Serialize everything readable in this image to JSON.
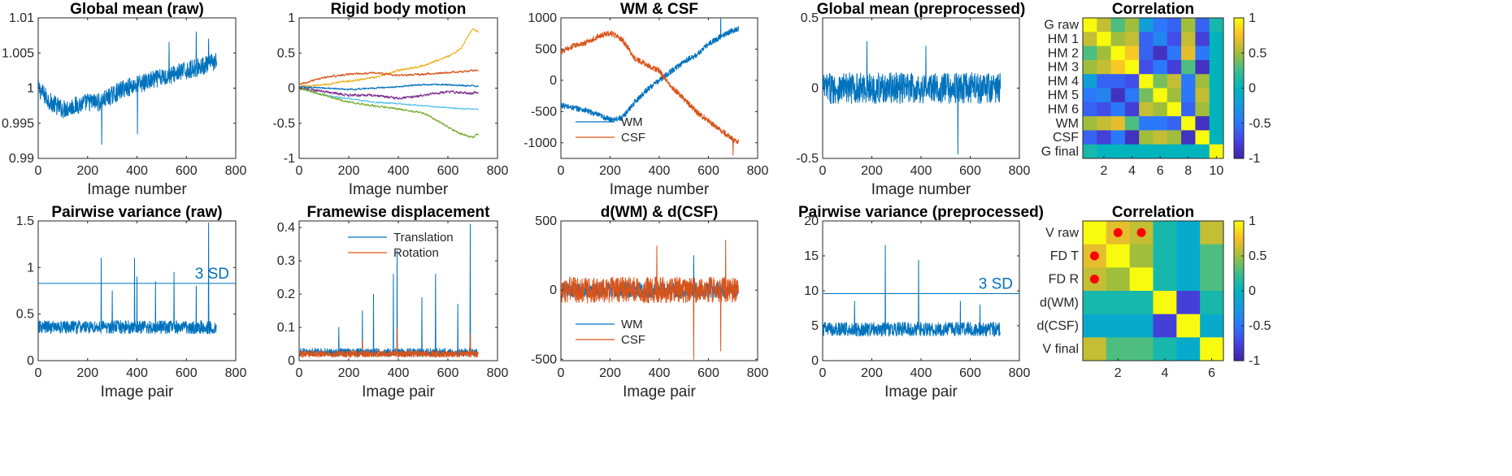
{
  "colors": {
    "blue": "#0072BD",
    "orange": "#D95319",
    "yellow": "#EDB120",
    "purple": "#7E2F8E",
    "green": "#77AC30",
    "cyan": "#4DBEEE",
    "marker": "#FF0000",
    "colormap": "parula"
  },
  "chart_data": [
    {
      "type": "line",
      "title": "Global mean (raw)",
      "xlabel": "Image number",
      "ylabel": "",
      "xlim": [
        0,
        800
      ],
      "ylim": [
        0.99,
        1.01
      ],
      "xticks": [
        "0",
        "200",
        "400",
        "600",
        "800"
      ],
      "yticks": [
        "0.99",
        "0.995",
        "1",
        "1.005",
        "1.01"
      ],
      "series": [
        {
          "color": "blue",
          "n": 724,
          "x": [
            0,
            50,
            100,
            150,
            200,
            250,
            300,
            350,
            400,
            450,
            500,
            550,
            600,
            650,
            700,
            723
          ],
          "y": [
            1.0,
            0.998,
            0.997,
            0.9975,
            0.998,
            0.998,
            0.999,
            1.0,
            1.0005,
            1.001,
            1.0015,
            1.002,
            1.0025,
            1.003,
            1.0035,
            1.004
          ],
          "noise": 0.0013,
          "spikes": [
            [
              257,
              0.992
            ],
            [
              402,
              0.9935
            ],
            [
              640,
              1.008
            ],
            [
              530,
              1.0065
            ],
            [
              690,
              1.007
            ]
          ]
        }
      ]
    },
    {
      "type": "line",
      "title": "Rigid body motion",
      "xlabel": "Image number",
      "ylabel": "",
      "xlim": [
        0,
        800
      ],
      "ylim": [
        -1,
        1
      ],
      "xticks": [
        "0",
        "200",
        "400",
        "600",
        "800"
      ],
      "yticks": [
        "-1",
        "-0.5",
        "0",
        "0.5",
        "1"
      ],
      "series": [
        {
          "color": "yellow",
          "n": 724,
          "x": [
            0,
            100,
            200,
            300,
            400,
            500,
            600,
            650,
            700,
            723
          ],
          "y": [
            0.02,
            0.05,
            0.1,
            0.15,
            0.25,
            0.32,
            0.45,
            0.55,
            0.85,
            0.8
          ],
          "noise": 0.03,
          "spikes": []
        },
        {
          "color": "orange",
          "n": 724,
          "x": [
            0,
            100,
            200,
            300,
            400,
            500,
            600,
            700,
            723
          ],
          "y": [
            0.05,
            0.15,
            0.2,
            0.22,
            0.18,
            0.2,
            0.22,
            0.25,
            0.25
          ],
          "noise": 0.03,
          "spikes": []
        },
        {
          "color": "blue",
          "n": 724,
          "x": [
            0,
            100,
            200,
            300,
            400,
            500,
            600,
            700,
            723
          ],
          "y": [
            0.02,
            0.0,
            -0.02,
            0.0,
            0.02,
            0.05,
            0.05,
            0.03,
            0.03
          ],
          "noise": 0.025,
          "spikes": []
        },
        {
          "color": "purple",
          "n": 724,
          "x": [
            0,
            100,
            200,
            300,
            400,
            500,
            600,
            700,
            723
          ],
          "y": [
            0.0,
            -0.05,
            -0.1,
            -0.1,
            -0.15,
            -0.1,
            -0.05,
            -0.08,
            -0.05
          ],
          "noise": 0.04,
          "spikes": []
        },
        {
          "color": "cyan",
          "n": 724,
          "x": [
            0,
            100,
            200,
            300,
            400,
            500,
            600,
            700,
            723
          ],
          "y": [
            0.0,
            -0.1,
            -0.15,
            -0.2,
            -0.22,
            -0.25,
            -0.28,
            -0.3,
            -0.3
          ],
          "noise": 0.02,
          "spikes": []
        },
        {
          "color": "green",
          "n": 724,
          "x": [
            0,
            100,
            200,
            300,
            400,
            500,
            550,
            600,
            650,
            700,
            723
          ],
          "y": [
            0.0,
            -0.1,
            -0.2,
            -0.25,
            -0.3,
            -0.35,
            -0.45,
            -0.55,
            -0.65,
            -0.7,
            -0.65
          ],
          "noise": 0.03,
          "spikes": []
        }
      ]
    },
    {
      "type": "line",
      "title": "WM & CSF",
      "xlabel": "Image number",
      "ylabel": "",
      "xlim": [
        0,
        800
      ],
      "ylim": [
        -1250,
        1000
      ],
      "xticks": [
        "0",
        "200",
        "400",
        "600",
        "800"
      ],
      "yticks": [
        "-1000",
        "-500",
        "0",
        "500",
        "1000"
      ],
      "legend": {
        "position": "lower-left",
        "labels": [
          "WM",
          "CSF"
        ]
      },
      "series": [
        {
          "name": "WM",
          "color": "blue",
          "n": 724,
          "x": [
            0,
            100,
            200,
            250,
            300,
            350,
            400,
            450,
            500,
            550,
            600,
            650,
            700,
            723
          ],
          "y": [
            -400,
            -480,
            -630,
            -600,
            -350,
            -150,
            0,
            150,
            300,
            400,
            580,
            700,
            800,
            820
          ],
          "noise": 45,
          "spikes": [
            [
              650,
              1000
            ]
          ]
        },
        {
          "name": "CSF",
          "color": "orange",
          "n": 724,
          "x": [
            0,
            50,
            100,
            150,
            200,
            250,
            300,
            350,
            400,
            450,
            500,
            550,
            600,
            650,
            700,
            723
          ],
          "y": [
            450,
            550,
            600,
            700,
            760,
            650,
            350,
            250,
            150,
            -100,
            -300,
            -500,
            -650,
            -800,
            -950,
            -1000
          ],
          "noise": 45,
          "spikes": [
            [
              700,
              -1200
            ]
          ]
        }
      ]
    },
    {
      "type": "line",
      "title": "Global mean (preprocessed)",
      "xlabel": "Image number",
      "ylabel": "",
      "xlim": [
        0,
        800
      ],
      "ylim": [
        -0.5,
        0.5
      ],
      "xticks": [
        "0",
        "200",
        "400",
        "600",
        "800"
      ],
      "yticks": [
        "-0.5",
        "0",
        "0.5"
      ],
      "series": [
        {
          "color": "blue",
          "n": 724,
          "x": [
            0,
            723
          ],
          "y": [
            0,
            0
          ],
          "noise": 0.11,
          "spikes": [
            [
              550,
              -0.47
            ],
            [
              180,
              0.33
            ],
            [
              420,
              0.3
            ]
          ]
        }
      ]
    },
    {
      "type": "heatmap",
      "title": "Correlation",
      "row_labels": [
        "G raw",
        "HM 1",
        "HM 2",
        "HM 3",
        "HM 4",
        "HM 5",
        "HM 6",
        "WM",
        "CSF",
        "G final"
      ],
      "xticks": [
        "2",
        "4",
        "6",
        "8",
        "10"
      ],
      "colorbar_ticks": [
        "1",
        "0.5",
        "0",
        "-0.5",
        "-1"
      ],
      "clim": [
        -1,
        1
      ],
      "matrix": [
        [
          1.0,
          0.6,
          0.3,
          0.5,
          -0.2,
          -0.5,
          -0.6,
          0.5,
          -0.6,
          0.1
        ],
        [
          0.6,
          1.0,
          0.5,
          0.6,
          -0.6,
          -0.4,
          -0.7,
          0.6,
          -0.8,
          0.0
        ],
        [
          0.3,
          0.5,
          1.0,
          0.8,
          -0.6,
          -0.9,
          -0.5,
          0.7,
          -0.5,
          0.0
        ],
        [
          0.5,
          0.6,
          0.8,
          1.0,
          -0.7,
          -0.5,
          -0.8,
          0.3,
          -0.9,
          0.0
        ],
        [
          -0.2,
          -0.6,
          -0.6,
          -0.7,
          1.0,
          0.4,
          0.6,
          -0.5,
          0.5,
          0.0
        ],
        [
          -0.5,
          -0.4,
          -0.9,
          -0.5,
          0.4,
          1.0,
          0.5,
          -0.5,
          0.6,
          0.0
        ],
        [
          -0.6,
          -0.7,
          -0.5,
          -0.8,
          0.6,
          0.5,
          1.0,
          -0.6,
          0.5,
          0.0
        ],
        [
          0.5,
          0.6,
          0.7,
          0.3,
          -0.5,
          -0.5,
          -0.6,
          1.0,
          -0.9,
          0.0
        ],
        [
          -0.6,
          -0.8,
          -0.5,
          -0.9,
          0.5,
          0.6,
          0.5,
          -0.9,
          1.0,
          0.0
        ],
        [
          0.1,
          0.0,
          0.0,
          0.0,
          0.0,
          0.0,
          0.0,
          0.0,
          0.0,
          1.0
        ]
      ]
    },
    {
      "type": "line",
      "title": "Pairwise variance (raw)",
      "xlabel": "Image pair",
      "ylabel": "",
      "xlim": [
        0,
        800
      ],
      "ylim": [
        0,
        1.5
      ],
      "xticks": [
        "0",
        "200",
        "400",
        "600",
        "800"
      ],
      "yticks": [
        "0",
        "0.5",
        "1",
        "1.5"
      ],
      "hline": {
        "y": 0.83,
        "label": "3 SD"
      },
      "series": [
        {
          "color": "blue",
          "n": 723,
          "x": [
            0,
            723
          ],
          "y": [
            0.36,
            0.36
          ],
          "noise": 0.07,
          "spikes": [
            [
              255,
              1.1
            ],
            [
              300,
              0.75
            ],
            [
              390,
              1.1
            ],
            [
              400,
              0.9
            ],
            [
              475,
              0.85
            ],
            [
              550,
              0.95
            ],
            [
              640,
              0.8
            ],
            [
              690,
              1.48
            ]
          ]
        }
      ]
    },
    {
      "type": "line",
      "title": "Framewise displacement",
      "xlabel": "Image pair",
      "ylabel": "",
      "xlim": [
        0,
        800
      ],
      "ylim": [
        0,
        0.42
      ],
      "xticks": [
        "0",
        "200",
        "400",
        "600",
        "800"
      ],
      "yticks": [
        "0",
        "0.1",
        "0.2",
        "0.3",
        "0.4"
      ],
      "legend": {
        "position": "top",
        "labels": [
          "Translation",
          "Rotation"
        ]
      },
      "series": [
        {
          "name": "Translation",
          "color": "blue",
          "n": 723,
          "x": [
            0,
            723
          ],
          "y": [
            0.025,
            0.025
          ],
          "noise": 0.012,
          "spikes": [
            [
              160,
              0.1
            ],
            [
              255,
              0.15
            ],
            [
              300,
              0.2
            ],
            [
              380,
              0.26
            ],
            [
              395,
              0.33
            ],
            [
              495,
              0.19
            ],
            [
              550,
              0.26
            ],
            [
              640,
              0.17
            ],
            [
              690,
              0.41
            ]
          ]
        },
        {
          "name": "Rotation",
          "color": "orange",
          "n": 723,
          "x": [
            0,
            723
          ],
          "y": [
            0.02,
            0.02
          ],
          "noise": 0.01,
          "spikes": [
            [
              255,
              0.06
            ],
            [
              395,
              0.1
            ],
            [
              690,
              0.08
            ]
          ]
        }
      ]
    },
    {
      "type": "line",
      "title": "d(WM) & d(CSF)",
      "xlabel": "Image pair",
      "ylabel": "",
      "xlim": [
        0,
        800
      ],
      "ylim": [
        -510,
        500
      ],
      "xticks": [
        "0",
        "200",
        "400",
        "600",
        "800"
      ],
      "yticks": [
        "-500",
        "0",
        "500"
      ],
      "legend": {
        "position": "lower-left",
        "labels": [
          "WM",
          "CSF"
        ]
      },
      "series": [
        {
          "name": "WM",
          "color": "blue",
          "n": 723,
          "x": [
            0,
            723
          ],
          "y": [
            0,
            0
          ],
          "noise": 55,
          "spikes": [
            [
              540,
              250
            ]
          ]
        },
        {
          "name": "CSF",
          "color": "orange",
          "n": 723,
          "x": [
            0,
            723
          ],
          "y": [
            0,
            0
          ],
          "noise": 95,
          "spikes": [
            [
              540,
              -500
            ],
            [
              390,
              320
            ],
            [
              670,
              360
            ],
            [
              650,
              -440
            ]
          ]
        }
      ]
    },
    {
      "type": "line",
      "title": "Pairwise variance (preprocessed)",
      "xlabel": "Image pair",
      "ylabel": "",
      "xlim": [
        0,
        800
      ],
      "ylim": [
        0,
        20
      ],
      "xticks": [
        "0",
        "200",
        "400",
        "600",
        "800"
      ],
      "yticks": [
        "0",
        "5",
        "10",
        "15",
        "20"
      ],
      "hline": {
        "y": 9.6,
        "label": "3 SD"
      },
      "series": [
        {
          "color": "blue",
          "n": 723,
          "x": [
            0,
            723
          ],
          "y": [
            4.5,
            4.5
          ],
          "noise": 1.0,
          "spikes": [
            [
              255,
              16.5
            ],
            [
              390,
              14.4
            ],
            [
              130,
              8.5
            ],
            [
              560,
              8.5
            ],
            [
              640,
              8.0
            ]
          ]
        }
      ]
    },
    {
      "type": "heatmap",
      "title": "Correlation",
      "row_labels": [
        "V raw",
        "FD T",
        "FD R",
        "d(WM)",
        "d(CSF)",
        "V final"
      ],
      "xticks": [
        "2",
        "4",
        "6"
      ],
      "colorbar_ticks": [
        "1",
        "0.5",
        "0",
        "-0.5",
        "-1"
      ],
      "clim": [
        -1,
        1
      ],
      "matrix": [
        [
          1.0,
          0.7,
          0.6,
          0.1,
          -0.1,
          0.6
        ],
        [
          0.7,
          1.0,
          0.5,
          0.1,
          -0.1,
          0.3
        ],
        [
          0.6,
          0.5,
          1.0,
          0.1,
          -0.1,
          0.3
        ],
        [
          0.1,
          0.1,
          0.1,
          1.0,
          -0.8,
          0.1
        ],
        [
          -0.1,
          -0.1,
          -0.1,
          -0.8,
          1.0,
          -0.1
        ],
        [
          0.6,
          0.3,
          0.3,
          0.1,
          -0.1,
          1.0
        ]
      ],
      "markers": [
        [
          0,
          1
        ],
        [
          0,
          2
        ],
        [
          1,
          0
        ],
        [
          2,
          0
        ]
      ]
    }
  ]
}
